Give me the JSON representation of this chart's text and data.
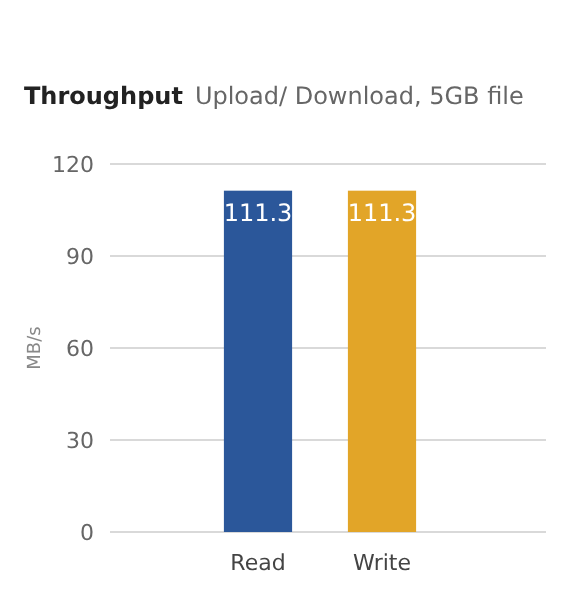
{
  "chart_data": {
    "type": "bar",
    "title": "Throughput",
    "subtitle": "Upload/ Download, 5GB file",
    "ylabel": "MB/s",
    "categories": [
      "Read",
      "Write"
    ],
    "values": [
      111.3,
      111.3
    ],
    "colors": [
      "#2b579a",
      "#e2a528"
    ],
    "ylim": [
      0,
      120
    ],
    "yticks": [
      0,
      30,
      60,
      90,
      120
    ],
    "grid": "y",
    "data_labels": true
  }
}
